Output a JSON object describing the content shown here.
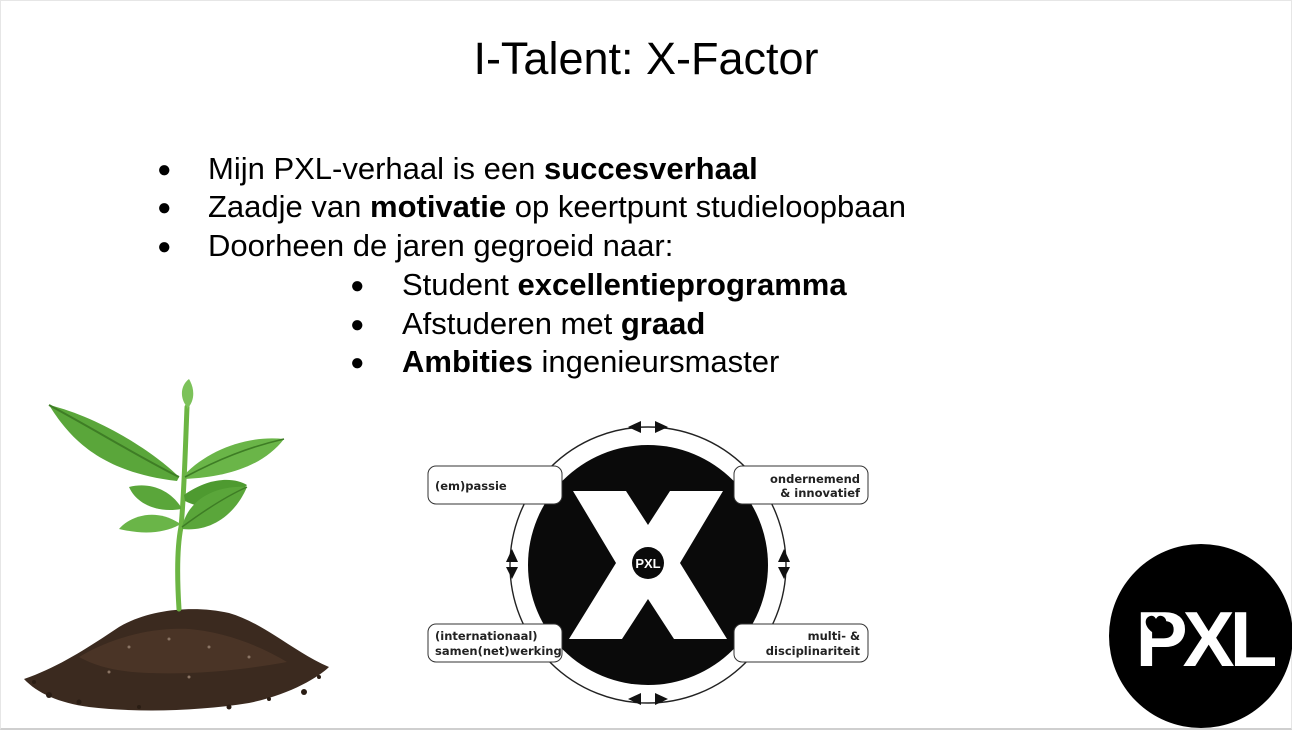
{
  "slide": {
    "title": "I-Talent: X-Factor",
    "bullets": [
      {
        "pre": "Mijn PXL-verhaal is een ",
        "bold": "succesverhaal",
        "post": ""
      },
      {
        "pre": "Zaadje van ",
        "bold": "motivatie",
        "post": " op keertpunt studieloopbaan"
      },
      {
        "pre": "Doorheen de jaren gegroeid naar:",
        "bold": "",
        "post": ""
      }
    ],
    "subbullets": [
      {
        "pre": "Student ",
        "bold": "excellentieprogramma",
        "post": ""
      },
      {
        "pre": "Afstuderen met ",
        "bold": "graad",
        "post": ""
      },
      {
        "pre": "",
        "bold": "Ambities",
        "post": " ingenieursmaster"
      }
    ],
    "bullet_glyph": "●"
  },
  "diagram": {
    "center_mark": "X",
    "center_badge": "PXL",
    "labels": {
      "top_left": "(em)passie",
      "top_right_line1": "ondernemend",
      "top_right_line2": "& innovatief",
      "bottom_left_line1": "(internationaal)",
      "bottom_left_line2": "samen(net)werking",
      "bottom_right_line1": "multi- &",
      "bottom_right_line2": "disciplinariteit"
    }
  },
  "logo": {
    "text": "PXL",
    "icon": "heart-icon",
    "bg_color": "#000000",
    "fg_color": "#ffffff"
  },
  "colors": {
    "leaf": "#5aa63a",
    "leaf_dark": "#3e7d25",
    "soil": "#3b2a1f"
  }
}
